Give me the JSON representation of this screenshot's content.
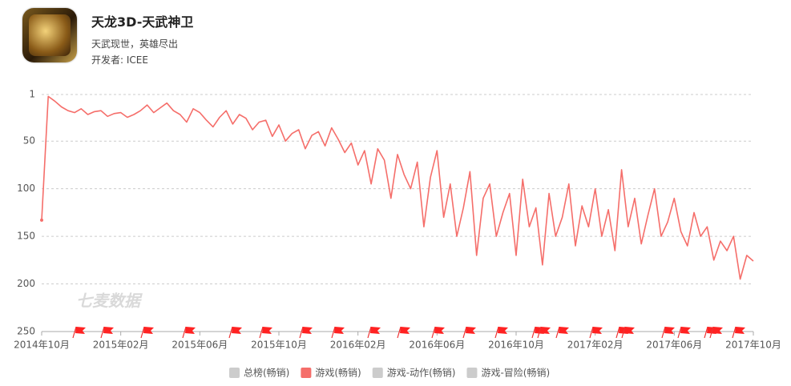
{
  "app": {
    "title": "天龙3D-天武神卫",
    "subtitle": "天武现世，英雄尽出",
    "developer": "开发者: ICEE"
  },
  "chart_data": {
    "type": "line",
    "watermark": "七麦数据",
    "categories": [
      "2014年10月",
      null,
      null,
      null,
      null,
      null,
      null,
      null,
      null,
      null,
      null,
      null,
      "2015年02月",
      null,
      null,
      null,
      null,
      null,
      null,
      null,
      null,
      null,
      null,
      null,
      "2015年06月",
      null,
      null,
      null,
      null,
      null,
      null,
      null,
      null,
      null,
      null,
      null,
      "2015年10月",
      null,
      null,
      null,
      null,
      null,
      null,
      null,
      null,
      null,
      null,
      null,
      "2016年02月",
      null,
      null,
      null,
      null,
      null,
      null,
      null,
      null,
      null,
      null,
      null,
      "2016年06月",
      null,
      null,
      null,
      null,
      null,
      null,
      null,
      null,
      null,
      null,
      null,
      "2016年10月",
      null,
      null,
      null,
      null,
      null,
      null,
      null,
      null,
      null,
      null,
      null,
      "2017年02月",
      null,
      null,
      null,
      null,
      null,
      null,
      null,
      null,
      null,
      null,
      null,
      "2017年06月",
      null,
      null,
      null,
      null,
      null,
      null,
      null,
      null,
      null,
      null,
      null,
      "2017年10月"
    ],
    "series": [
      {
        "name": "游戏(畅销)",
        "color": "#f56e6a",
        "values": [
          133,
          3,
          8,
          14,
          18,
          20,
          16,
          22,
          19,
          18,
          24,
          21,
          20,
          25,
          22,
          18,
          12,
          20,
          15,
          10,
          18,
          22,
          30,
          16,
          20,
          28,
          35,
          25,
          18,
          32,
          22,
          26,
          38,
          30,
          28,
          45,
          33,
          50,
          42,
          38,
          58,
          44,
          40,
          55,
          36,
          48,
          62,
          52,
          75,
          60,
          95,
          58,
          70,
          110,
          64,
          85,
          100,
          72,
          140,
          88,
          60,
          130,
          95,
          150,
          120,
          82,
          170,
          110,
          95,
          150,
          125,
          105,
          170,
          90,
          140,
          120,
          180,
          105,
          150,
          130,
          95,
          160,
          118,
          140,
          100,
          150,
          122,
          165,
          80,
          140,
          110,
          158,
          128,
          100,
          150,
          135,
          110,
          145,
          160,
          125,
          150,
          140,
          175,
          155,
          165,
          150,
          195,
          170,
          176
        ]
      }
    ],
    "hidden_series": [
      {
        "name": "总榜(畅销)",
        "color": "#cccccc"
      },
      {
        "name": "游戏-动作(畅销)",
        "color": "#cccccc"
      },
      {
        "name": "游戏-冒险(畅销)",
        "color": "#cccccc"
      }
    ],
    "ylim": [
      1,
      250
    ],
    "yticks": [
      1,
      50,
      100,
      150,
      200,
      250
    ],
    "y_inverted": true,
    "grid": true
  }
}
